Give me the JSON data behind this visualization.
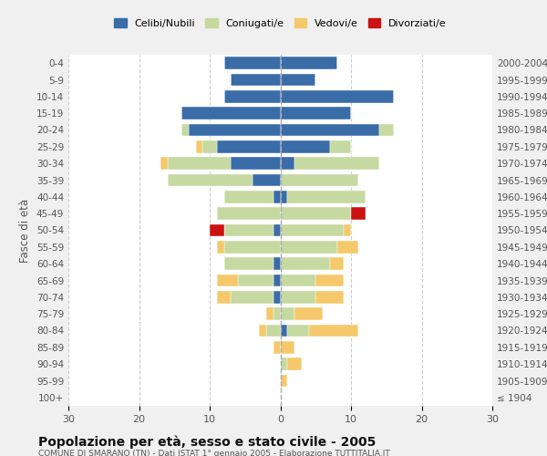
{
  "age_groups": [
    "100+",
    "95-99",
    "90-94",
    "85-89",
    "80-84",
    "75-79",
    "70-74",
    "65-69",
    "60-64",
    "55-59",
    "50-54",
    "45-49",
    "40-44",
    "35-39",
    "30-34",
    "25-29",
    "20-24",
    "15-19",
    "10-14",
    "5-9",
    "0-4"
  ],
  "birth_years": [
    "≤ 1904",
    "1905-1909",
    "1910-1914",
    "1915-1919",
    "1920-1924",
    "1925-1929",
    "1930-1934",
    "1935-1939",
    "1940-1944",
    "1945-1949",
    "1950-1954",
    "1955-1959",
    "1960-1964",
    "1965-1969",
    "1970-1974",
    "1975-1979",
    "1980-1984",
    "1985-1989",
    "1990-1994",
    "1995-1999",
    "2000-2004"
  ],
  "male": {
    "celibi": [
      0,
      0,
      0,
      0,
      0,
      0,
      1,
      1,
      1,
      0,
      1,
      0,
      1,
      4,
      7,
      9,
      13,
      14,
      8,
      7,
      8
    ],
    "coniugati": [
      0,
      0,
      0,
      0,
      2,
      1,
      6,
      5,
      7,
      8,
      7,
      9,
      7,
      12,
      9,
      2,
      1,
      0,
      0,
      0,
      0
    ],
    "vedovi": [
      0,
      0,
      0,
      1,
      1,
      1,
      2,
      3,
      0,
      1,
      0,
      0,
      0,
      0,
      1,
      1,
      0,
      0,
      0,
      0,
      0
    ],
    "divorziati": [
      0,
      0,
      0,
      0,
      0,
      0,
      0,
      0,
      0,
      0,
      2,
      0,
      0,
      0,
      0,
      0,
      0,
      0,
      0,
      0,
      0
    ]
  },
  "female": {
    "nubili": [
      0,
      0,
      0,
      0,
      1,
      0,
      0,
      0,
      0,
      0,
      0,
      0,
      1,
      0,
      2,
      7,
      14,
      10,
      16,
      5,
      8
    ],
    "coniugate": [
      0,
      0,
      1,
      0,
      3,
      2,
      5,
      5,
      7,
      8,
      9,
      10,
      11,
      11,
      12,
      3,
      2,
      0,
      0,
      0,
      0
    ],
    "vedove": [
      0,
      1,
      2,
      2,
      7,
      4,
      4,
      4,
      2,
      3,
      1,
      0,
      0,
      0,
      0,
      0,
      0,
      0,
      0,
      0,
      0
    ],
    "divorziate": [
      0,
      0,
      0,
      0,
      0,
      0,
      0,
      0,
      0,
      0,
      0,
      2,
      0,
      0,
      0,
      0,
      0,
      0,
      0,
      0,
      0
    ]
  },
  "colors": {
    "celibi": "#3a6ca8",
    "coniugati": "#c5d9a0",
    "vedovi": "#f5c96b",
    "divorziati": "#cc1111"
  },
  "title": "Popolazione per età, sesso e stato civile - 2005",
  "subtitle": "COMUNE DI SMARANO (TN) - Dati ISTAT 1° gennaio 2005 - Elaborazione TUTTITALIA.IT",
  "ylabel_left": "Fasce di età",
  "xlim": 30,
  "background_color": "#f0f0f0",
  "plot_bg": "#ffffff",
  "legend_labels": [
    "Celibi/Nubili",
    "Coniugati/e",
    "Vedovi/e",
    "Divorziati/e"
  ]
}
